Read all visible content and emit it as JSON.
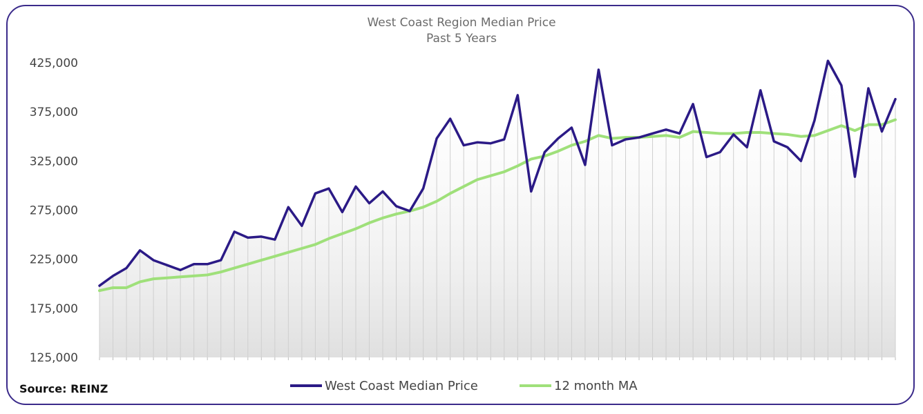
{
  "chart_data": {
    "type": "line",
    "title": "West Coast Region Median Price",
    "subtitle": "Past 5 Years",
    "source": "Source: REINZ",
    "yticks": [
      "425,000",
      "375,000",
      "325,000",
      "275,000",
      "225,000",
      "175,000",
      "125,000"
    ],
    "ylim": [
      125000,
      425000
    ],
    "grid": "vertical area fill under median series",
    "legend_position": "bottom-center",
    "series": [
      {
        "name": "West Coast Median Price",
        "color": "#2b1a86",
        "values": [
          198000,
          208000,
          216000,
          234000,
          224000,
          219000,
          214000,
          220000,
          220000,
          224000,
          253000,
          247000,
          248000,
          245000,
          278000,
          259000,
          292000,
          297000,
          273000,
          299000,
          282000,
          294000,
          279000,
          274000,
          297000,
          348000,
          368000,
          341000,
          344000,
          343000,
          347000,
          392000,
          294000,
          334000,
          348000,
          359000,
          321000,
          418000,
          341000,
          347000,
          349000,
          353000,
          357000,
          353000,
          383000,
          329000,
          334000,
          352000,
          339000,
          397000,
          345000,
          339000,
          325000,
          366000,
          427000,
          402000,
          309000,
          399000,
          355000,
          388000
        ]
      },
      {
        "name": "12 month MA",
        "color": "#9fe07a",
        "values": [
          193000,
          196000,
          196000,
          202000,
          205000,
          206000,
          207000,
          208000,
          209000,
          212000,
          216000,
          220000,
          224000,
          228000,
          232000,
          236000,
          240000,
          246000,
          251000,
          256000,
          262000,
          267000,
          271000,
          274000,
          278000,
          284000,
          292000,
          299000,
          306000,
          310000,
          314000,
          320000,
          327000,
          330000,
          335000,
          341000,
          345000,
          351000,
          348000,
          349000,
          349000,
          350000,
          351000,
          349000,
          355000,
          354000,
          353000,
          353000,
          354000,
          354000,
          353000,
          352000,
          350000,
          351000,
          356000,
          361000,
          356000,
          362000,
          362000,
          367000
        ]
      }
    ]
  }
}
